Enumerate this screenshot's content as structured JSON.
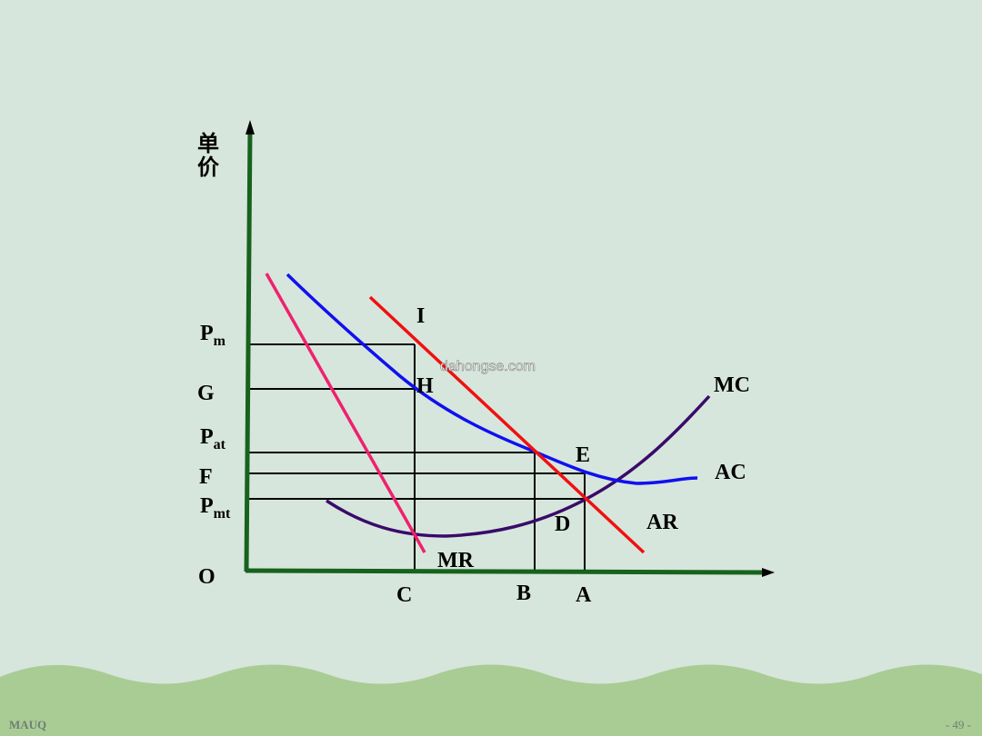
{
  "diagram": {
    "y_axis_label_line1": "单",
    "y_axis_label_line2": "价",
    "origin": "O",
    "y_labels": [
      {
        "id": "pm",
        "base": "P",
        "sub": "m"
      },
      {
        "id": "g",
        "base": "G",
        "sub": ""
      },
      {
        "id": "pat",
        "base": "P",
        "sub": "at"
      },
      {
        "id": "f",
        "base": "F",
        "sub": ""
      },
      {
        "id": "pmt",
        "base": "P",
        "sub": "mt"
      }
    ],
    "x_labels": [
      "C",
      "B",
      "A"
    ],
    "points": [
      "I",
      "H",
      "E",
      "D"
    ],
    "curves": {
      "mc": "MC",
      "ac": "AC",
      "ar": "AR",
      "mr": "MR"
    },
    "watermark": "dahongse.com",
    "colors": {
      "axis": "#17621c",
      "ar": "#f01010",
      "mr": "#f0206e",
      "ac": "#1010f0",
      "mc": "#3a0a6a",
      "guides": "#000000"
    }
  },
  "footer": {
    "left": "MAUQ",
    "right": "- 49 -"
  }
}
